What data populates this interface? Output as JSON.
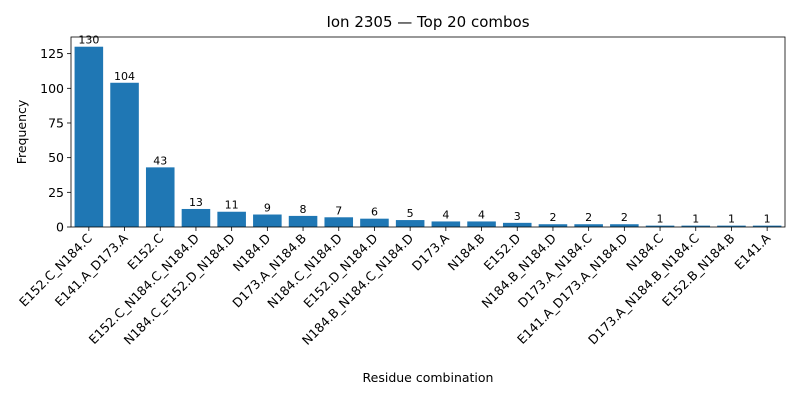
{
  "chart_data": {
    "type": "bar",
    "title": "Ion 2305 — Top 20 combos",
    "xlabel": "Residue combination",
    "ylabel": "Frequency",
    "categories": [
      "E152.C_N184.C",
      "E141.A_D173.A",
      "E152.C",
      "E152.C_N184.C_N184.D",
      "N184.C_E152.D_N184.D",
      "N184.D",
      "D173.A_N184.B",
      "N184.C_N184.D",
      "E152.D_N184.D",
      "N184.B_N184.C_N184.D",
      "D173.A",
      "N184.B",
      "E152.D",
      "N184.B_N184.D",
      "D173.A_N184.C",
      "E141.A_D173.A_N184.D",
      "N184.C",
      "D173.A_N184.B_N184.C",
      "E152.B_N184.B",
      "E141.A"
    ],
    "values": [
      130,
      104,
      43,
      13,
      11,
      9,
      8,
      7,
      6,
      5,
      4,
      4,
      3,
      2,
      2,
      2,
      1,
      1,
      1,
      1
    ],
    "ylim": [
      0,
      137
    ],
    "yticks": [
      0,
      25,
      50,
      75,
      100,
      125
    ],
    "bar_color": "#1f77b4",
    "grid": false,
    "legend": "none"
  }
}
